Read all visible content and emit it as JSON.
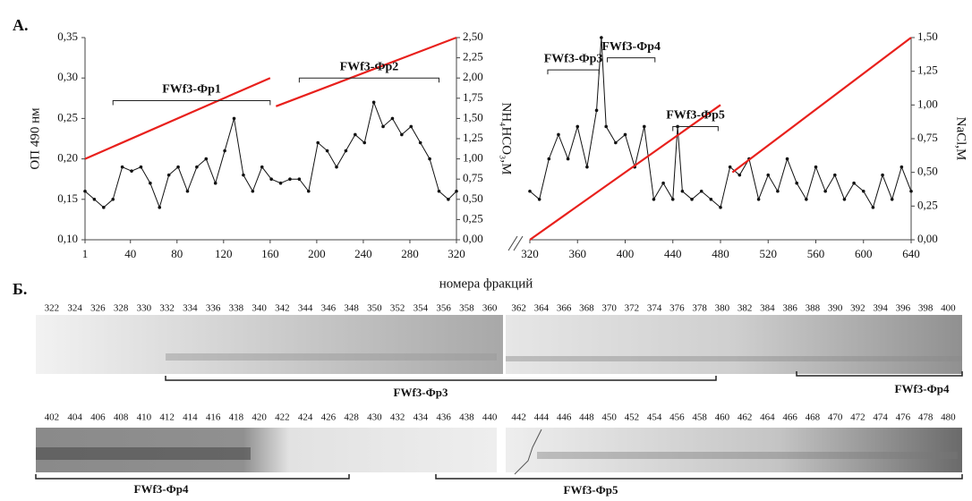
{
  "panel_a_label": "А.",
  "x_axis_label": "номера фракций",
  "chart_data": [
    {
      "type": "line",
      "xlim": [
        1,
        320
      ],
      "xticks": [
        1,
        40,
        80,
        120,
        160,
        200,
        240,
        280,
        320
      ],
      "ylim": [
        0.1,
        0.35
      ],
      "yticks": [
        {
          "value": 0.1,
          "label": "0,10"
        },
        {
          "value": 0.15,
          "label": "0,15"
        },
        {
          "value": 0.2,
          "label": "0,20"
        },
        {
          "value": 0.25,
          "label": "0,25"
        },
        {
          "value": 0.3,
          "label": "0,30"
        },
        {
          "value": 0.35,
          "label": "0,35"
        }
      ],
      "y_label": "ОП 490 нм",
      "y2lim": [
        0,
        2.5
      ],
      "y2ticks": [
        {
          "value": 0,
          "label": "0,00"
        },
        {
          "value": 0.25,
          "label": "0,25"
        },
        {
          "value": 0.5,
          "label": "0,50"
        },
        {
          "value": 0.75,
          "label": "0,75"
        },
        {
          "value": 1.0,
          "label": "1,00"
        },
        {
          "value": 1.25,
          "label": "1,25"
        },
        {
          "value": 1.5,
          "label": "1,50"
        },
        {
          "value": 1.75,
          "label": "1,75"
        },
        {
          "value": 2.0,
          "label": "2,00"
        },
        {
          "value": 2.25,
          "label": "2,25"
        },
        {
          "value": 2.5,
          "label": "2,50"
        }
      ],
      "y2_label": "NH₄HCO₃,M",
      "series": [
        {
          "color": "#111111",
          "marker": true,
          "x": [
            1,
            9,
            17,
            25,
            33,
            41,
            49,
            57,
            65,
            73,
            81,
            89,
            97,
            105,
            113,
            121,
            129,
            137,
            145,
            153,
            161,
            169,
            177,
            185,
            193,
            201,
            209,
            217,
            225,
            233,
            241,
            249,
            257,
            265,
            273,
            281,
            289,
            297,
            305,
            313,
            320
          ],
          "values": [
            0.16,
            0.15,
            0.14,
            0.15,
            0.19,
            0.185,
            0.19,
            0.17,
            0.14,
            0.18,
            0.19,
            0.16,
            0.19,
            0.2,
            0.17,
            0.21,
            0.25,
            0.18,
            0.16,
            0.19,
            0.175,
            0.17,
            0.175,
            0.175,
            0.16,
            0.22,
            0.21,
            0.19,
            0.21,
            0.23,
            0.22,
            0.27,
            0.24,
            0.25,
            0.23,
            0.24,
            0.22,
            0.2,
            0.16,
            0.15,
            0.16
          ]
        },
        {
          "color": "#e8201c",
          "axis": "y2",
          "x": [
            1,
            160
          ],
          "values": [
            1.0,
            2.0
          ]
        },
        {
          "color": "#e8201c",
          "axis": "y2",
          "x": [
            165,
            320
          ],
          "values": [
            1.65,
            2.5
          ]
        }
      ],
      "annotations": [
        {
          "text": "FWf3-Фр1",
          "x": [
            25,
            160
          ],
          "y": 0.272
        },
        {
          "text": "FWf3-Фр2",
          "x": [
            185,
            305
          ],
          "y": 0.3
        }
      ]
    },
    {
      "type": "line",
      "xlim": [
        320,
        640
      ],
      "xticks": [
        320,
        360,
        400,
        440,
        480,
        520,
        560,
        600,
        640
      ],
      "ylim": [
        0.1,
        0.35
      ],
      "y2lim": [
        0,
        1.5
      ],
      "y2ticks": [
        {
          "value": 0,
          "label": "0,00"
        },
        {
          "value": 0.25,
          "label": "0,25"
        },
        {
          "value": 0.5,
          "label": "0,50"
        },
        {
          "value": 0.75,
          "label": "0,75"
        },
        {
          "value": 1.0,
          "label": "1,00"
        },
        {
          "value": 1.25,
          "label": "1,25"
        },
        {
          "value": 1.5,
          "label": "1,50"
        }
      ],
      "y2_label": "NaCl,M",
      "series": [
        {
          "color": "#111111",
          "marker": true,
          "x": [
            320,
            328,
            336,
            344,
            352,
            360,
            368,
            376,
            380,
            384,
            392,
            400,
            408,
            416,
            424,
            432,
            440,
            444,
            448,
            456,
            464,
            472,
            480,
            488,
            496,
            504,
            512,
            520,
            528,
            536,
            544,
            552,
            560,
            568,
            576,
            584,
            592,
            600,
            608,
            616,
            624,
            632,
            640
          ],
          "values": [
            0.16,
            0.15,
            0.2,
            0.23,
            0.2,
            0.24,
            0.19,
            0.26,
            0.35,
            0.24,
            0.22,
            0.23,
            0.19,
            0.24,
            0.15,
            0.17,
            0.15,
            0.24,
            0.16,
            0.15,
            0.16,
            0.15,
            0.14,
            0.19,
            0.18,
            0.2,
            0.15,
            0.18,
            0.16,
            0.2,
            0.17,
            0.15,
            0.19,
            0.16,
            0.18,
            0.15,
            0.17,
            0.16,
            0.14,
            0.18,
            0.15,
            0.19,
            0.16
          ]
        },
        {
          "color": "#e8201c",
          "axis": "y2",
          "x": [
            320,
            480
          ],
          "values": [
            0,
            1.0
          ]
        },
        {
          "color": "#e8201c",
          "axis": "y2",
          "x": [
            490,
            640
          ],
          "values": [
            0.5,
            1.5
          ]
        }
      ],
      "annotations": [
        {
          "text": "FWf3-Фр3",
          "x": [
            335,
            378
          ],
          "y": 0.31
        },
        {
          "text": "FWf3-Фр4",
          "x": [
            385,
            425
          ],
          "y": 0.325
        },
        {
          "text": "FWf3-Фр5",
          "x": [
            440,
            478
          ],
          "y": 0.24
        }
      ]
    }
  ],
  "gel": {
    "label": "Б.",
    "rows": [
      {
        "lanes": [
          322,
          324,
          326,
          328,
          330,
          332,
          334,
          336,
          338,
          340,
          342,
          344,
          346,
          348,
          350,
          352,
          354,
          356,
          358,
          360,
          362,
          364,
          366,
          368,
          370,
          372,
          374,
          376,
          378,
          380,
          382,
          384,
          386,
          388,
          390,
          392,
          394,
          396,
          398,
          400
        ],
        "brackets": [
          {
            "text": "FWf3-Фр3"
          },
          {
            "text": "FWf3-Фр4"
          }
        ]
      },
      {
        "lanes": [
          402,
          404,
          406,
          408,
          410,
          412,
          414,
          416,
          418,
          420,
          422,
          424,
          426,
          428,
          430,
          432,
          434,
          436,
          438,
          440,
          442,
          444,
          446,
          448,
          450,
          452,
          454,
          456,
          458,
          460,
          462,
          464,
          466,
          468,
          470,
          472,
          474,
          476,
          478,
          480
        ],
        "brackets": [
          {
            "text": "FWf3-Фр4"
          },
          {
            "text": "FWf3-Фр5"
          }
        ]
      }
    ]
  }
}
